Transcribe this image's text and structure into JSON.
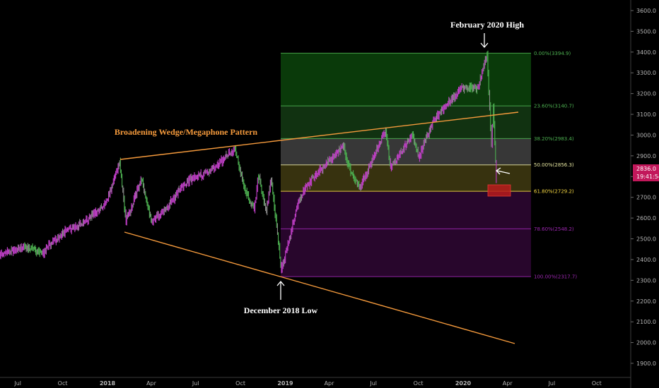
{
  "chart_data": {
    "type": "line",
    "title": "",
    "xlabel": "",
    "ylabel": "",
    "ylim": [
      1860,
      3640
    ],
    "grid": false,
    "y_ticks": [
      "1900.0",
      "2000.0",
      "2100.0",
      "2200.0",
      "2300.0",
      "2400.0",
      "2500.0",
      "2600.0",
      "2700.0",
      "2800.0",
      "2900.0",
      "3000.0",
      "3100.0",
      "3200.0",
      "3300.0",
      "3400.0",
      "3500.0",
      "3600.0"
    ],
    "x_ticks": [
      "Jul",
      "Oct",
      "2018",
      "Apr",
      "Jul",
      "Oct",
      "2019",
      "Apr",
      "Jul",
      "Oct",
      "2020",
      "Apr",
      "Jul",
      "Oct"
    ],
    "x_ticks_bold": [
      "2018",
      "2019",
      "2020"
    ],
    "series": [
      {
        "points": [
          [
            "2017-03-01",
            2380
          ],
          [
            "2017-04-15",
            2360
          ],
          [
            "2017-06-01",
            2430
          ],
          [
            "2017-07-15",
            2460
          ],
          [
            "2017-08-20",
            2430
          ],
          [
            "2017-10-01",
            2530
          ],
          [
            "2017-11-15",
            2580
          ],
          [
            "2017-12-31",
            2680
          ],
          [
            "2018-01-26",
            2872
          ],
          [
            "2018-02-08",
            2580
          ],
          [
            "2018-03-01",
            2720
          ],
          [
            "2018-03-12",
            2790
          ],
          [
            "2018-04-02",
            2580
          ],
          [
            "2018-05-01",
            2650
          ],
          [
            "2018-06-15",
            2780
          ],
          [
            "2018-08-01",
            2830
          ],
          [
            "2018-09-20",
            2935
          ],
          [
            "2018-10-11",
            2730
          ],
          [
            "2018-10-29",
            2640
          ],
          [
            "2018-11-07",
            2810
          ],
          [
            "2018-11-23",
            2630
          ],
          [
            "2018-12-03",
            2790
          ],
          [
            "2018-12-24",
            2350
          ],
          [
            "2019-01-31",
            2700
          ],
          [
            "2019-03-01",
            2800
          ],
          [
            "2019-04-30",
            2950
          ],
          [
            "2019-05-10",
            2850
          ],
          [
            "2019-06-03",
            2740
          ],
          [
            "2019-07-26",
            3025
          ],
          [
            "2019-08-05",
            2840
          ],
          [
            "2019-09-19",
            3005
          ],
          [
            "2019-10-02",
            2890
          ],
          [
            "2019-11-01",
            3070
          ],
          [
            "2019-12-31",
            3230
          ],
          [
            "2020-01-31",
            3225
          ],
          [
            "2020-02-19",
            3393
          ],
          [
            "2020-02-28",
            2955
          ],
          [
            "2020-03-03",
            3130
          ],
          [
            "2020-03-09",
            2780
          ]
        ]
      }
    ],
    "fibonacci": [
      {
        "label": "0.00%(3394.9)",
        "value": 3394.9,
        "color": "#4caf50"
      },
      {
        "label": "23.60%(3140.7)",
        "value": 3140.7,
        "color": "#4caf50"
      },
      {
        "label": "38.20%(2983.4)",
        "value": 2983.4,
        "color": "#4caf50"
      },
      {
        "label": "50.00%(2856.3)",
        "value": 2856.3,
        "color": "#e6e6a0"
      },
      {
        "label": "61.80%(2729.2)",
        "value": 2729.2,
        "color": "#f5d742"
      },
      {
        "label": "78.60%(2548.2)",
        "value": 2548.2,
        "color": "#9c27b0"
      },
      {
        "label": "100.00%(2317.7)",
        "value": 2317.7,
        "color": "#9c27b0"
      }
    ],
    "annotations": [
      {
        "text": "February 2020 High"
      },
      {
        "text": "December 2018 Low"
      },
      {
        "text": "Broadening Wedge/Megaphone Pattern"
      }
    ],
    "price_badge": {
      "price": "2836.0",
      "timer": "19:41:54"
    }
  },
  "colors": {
    "background": "#000000",
    "up": "#4caf50",
    "down": "#c13fc8",
    "neutral": "#8a8a8a",
    "trendline": "#f59a3c",
    "badge": "#c2185b",
    "target_box": "#b71c1c"
  }
}
